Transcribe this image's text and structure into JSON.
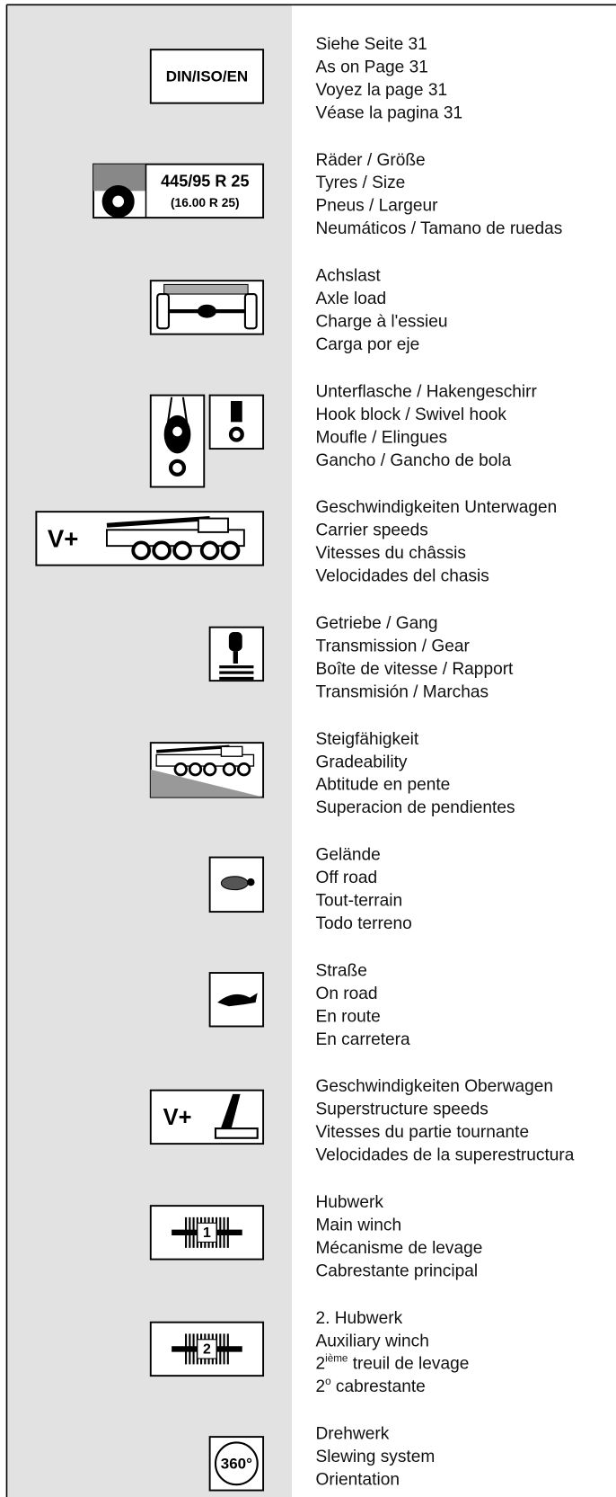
{
  "entries": [
    {
      "icon_text": [
        "DIN/ISO/EN"
      ],
      "lines": [
        "Siehe Seite 31",
        "As on Page 31",
        "Voyez la page 31",
        "Véase la pagina 31"
      ]
    },
    {
      "icon_text": [
        "445/95 R 25",
        "(16.00 R 25)"
      ],
      "lines": [
        "Räder / Größe",
        "Tyres / Size",
        "Pneus / Largeur",
        "Neumáticos / Tamano de ruedas"
      ]
    },
    {
      "lines": [
        "Achslast",
        "Axle load",
        "Charge à l'essieu",
        "Carga por eje"
      ]
    },
    {
      "lines": [
        "Unterflasche / Hakengeschirr",
        "Hook block / Swivel hook",
        "Moufle / Elingues",
        "Gancho / Gancho de bola"
      ]
    },
    {
      "icon_text": [
        "V+"
      ],
      "lines": [
        "Geschwindigkeiten Unterwagen",
        "Carrier speeds",
        "Vitesses du châssis",
        "Velocidades del chasis"
      ]
    },
    {
      "lines": [
        "Getriebe / Gang",
        "Transmission / Gear",
        "Boîte de vitesse / Rapport",
        "Transmisión / Marchas"
      ]
    },
    {
      "lines": [
        "Steigfähigkeit",
        "Gradeability",
        "Abtitude en pente",
        "Superacion de pendientes"
      ]
    },
    {
      "lines": [
        "Gelände",
        "Off road",
        "Tout-terrain",
        "Todo terreno"
      ]
    },
    {
      "lines": [
        "Straße",
        "On road",
        "En route",
        "En carretera"
      ]
    },
    {
      "icon_text": [
        "V+"
      ],
      "lines": [
        "Geschwindigkeiten Oberwagen",
        "Superstructure speeds",
        "Vitesses du partie tournante",
        "Velocidades de la superestructura"
      ]
    },
    {
      "icon_text": [
        "1"
      ],
      "lines": [
        "Hubwerk",
        "Main winch",
        "Mécanisme de levage",
        "Cabrestante principal"
      ]
    },
    {
      "icon_text": [
        "2"
      ],
      "lines": [
        "2. Hubwerk",
        "Auxiliary winch",
        {
          "base": "2",
          "sup": "ième",
          "rest": " treuil de levage"
        },
        {
          "base": "2",
          "sup": "o",
          "rest": " cabrestante"
        }
      ]
    },
    {
      "icon_text": [
        "360°"
      ],
      "lines": [
        "Drehwerk",
        "Slewing system",
        "Orientation"
      ]
    }
  ]
}
